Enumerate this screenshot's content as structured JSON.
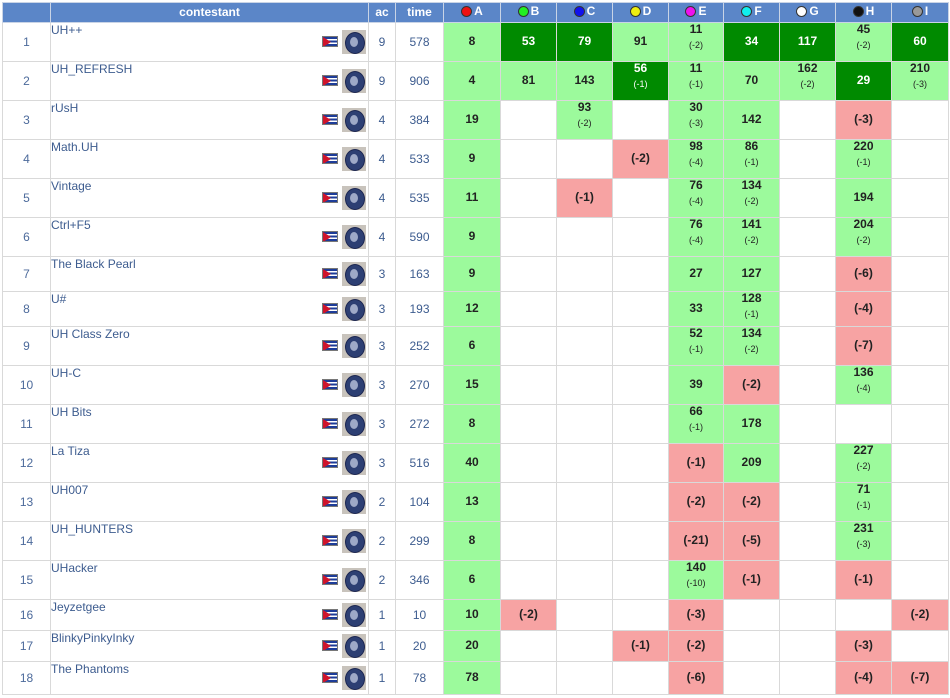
{
  "header": {
    "rank": "",
    "contestant": "contestant",
    "ac": "ac",
    "time": "time"
  },
  "problems": [
    {
      "label": "A",
      "color": "#ee1111"
    },
    {
      "label": "B",
      "color": "#22ee22"
    },
    {
      "label": "C",
      "color": "#1111ee"
    },
    {
      "label": "D",
      "color": "#eeee11"
    },
    {
      "label": "E",
      "color": "#ee11ee"
    },
    {
      "label": "F",
      "color": "#11eeee"
    },
    {
      "label": "G",
      "color": "#ffffff"
    },
    {
      "label": "H",
      "color": "#111111"
    },
    {
      "label": "I",
      "color": "#999999"
    }
  ],
  "rows": [
    {
      "rank": "1",
      "name": "UH++",
      "ac": "9",
      "time": "578",
      "cells": [
        {
          "s": "solved",
          "t": "8"
        },
        {
          "s": "first",
          "t": "53"
        },
        {
          "s": "first",
          "t": "79"
        },
        {
          "s": "solved",
          "t": "91"
        },
        {
          "s": "solved",
          "t": "11",
          "a": "(-2)"
        },
        {
          "s": "first",
          "t": "34"
        },
        {
          "s": "first",
          "t": "117"
        },
        {
          "s": "solved",
          "t": "45",
          "a": "(-2)"
        },
        {
          "s": "first",
          "t": "60"
        }
      ]
    },
    {
      "rank": "2",
      "name": "UH_REFRESH",
      "ac": "9",
      "time": "906",
      "cells": [
        {
          "s": "solved",
          "t": "4"
        },
        {
          "s": "solved",
          "t": "81"
        },
        {
          "s": "solved",
          "t": "143"
        },
        {
          "s": "first",
          "t": "56",
          "a": "(-1)"
        },
        {
          "s": "solved",
          "t": "11",
          "a": "(-1)"
        },
        {
          "s": "solved",
          "t": "70"
        },
        {
          "s": "solved",
          "t": "162",
          "a": "(-2)"
        },
        {
          "s": "first",
          "t": "29"
        },
        {
          "s": "solved",
          "t": "210",
          "a": "(-3)"
        }
      ]
    },
    {
      "rank": "3",
      "name": "rUsH",
      "ac": "4",
      "time": "384",
      "cells": [
        {
          "s": "solved",
          "t": "19"
        },
        {
          "s": "empty"
        },
        {
          "s": "solved",
          "t": "93",
          "a": "(-2)"
        },
        {
          "s": "empty"
        },
        {
          "s": "solved",
          "t": "30",
          "a": "(-3)"
        },
        {
          "s": "solved",
          "t": "142"
        },
        {
          "s": "empty"
        },
        {
          "s": "failed",
          "t": "(-3)"
        },
        {
          "s": "empty"
        }
      ]
    },
    {
      "rank": "4",
      "name": "Math.UH",
      "ac": "4",
      "time": "533",
      "cells": [
        {
          "s": "solved",
          "t": "9"
        },
        {
          "s": "empty"
        },
        {
          "s": "empty"
        },
        {
          "s": "failed",
          "t": "(-2)"
        },
        {
          "s": "solved",
          "t": "98",
          "a": "(-4)"
        },
        {
          "s": "solved",
          "t": "86",
          "a": "(-1)"
        },
        {
          "s": "empty"
        },
        {
          "s": "solved",
          "t": "220",
          "a": "(-1)"
        },
        {
          "s": "empty"
        }
      ]
    },
    {
      "rank": "5",
      "name": "Vintage",
      "ac": "4",
      "time": "535",
      "cells": [
        {
          "s": "solved",
          "t": "11"
        },
        {
          "s": "empty"
        },
        {
          "s": "failed",
          "t": "(-1)"
        },
        {
          "s": "empty"
        },
        {
          "s": "solved",
          "t": "76",
          "a": "(-4)"
        },
        {
          "s": "solved",
          "t": "134",
          "a": "(-2)"
        },
        {
          "s": "empty"
        },
        {
          "s": "solved",
          "t": "194"
        },
        {
          "s": "empty"
        }
      ]
    },
    {
      "rank": "6",
      "name": "Ctrl+F5",
      "ac": "4",
      "time": "590",
      "cells": [
        {
          "s": "solved",
          "t": "9"
        },
        {
          "s": "empty"
        },
        {
          "s": "empty"
        },
        {
          "s": "empty"
        },
        {
          "s": "solved",
          "t": "76",
          "a": "(-4)"
        },
        {
          "s": "solved",
          "t": "141",
          "a": "(-2)"
        },
        {
          "s": "empty"
        },
        {
          "s": "solved",
          "t": "204",
          "a": "(-2)"
        },
        {
          "s": "empty"
        }
      ]
    },
    {
      "rank": "7",
      "name": "The Black Pearl",
      "ac": "3",
      "time": "163",
      "cells": [
        {
          "s": "solved",
          "t": "9"
        },
        {
          "s": "empty"
        },
        {
          "s": "empty"
        },
        {
          "s": "empty"
        },
        {
          "s": "solved",
          "t": "27"
        },
        {
          "s": "solved",
          "t": "127"
        },
        {
          "s": "empty"
        },
        {
          "s": "failed",
          "t": "(-6)"
        },
        {
          "s": "empty"
        }
      ]
    },
    {
      "rank": "8",
      "name": "U#",
      "ac": "3",
      "time": "193",
      "cells": [
        {
          "s": "solved",
          "t": "12"
        },
        {
          "s": "empty"
        },
        {
          "s": "empty"
        },
        {
          "s": "empty"
        },
        {
          "s": "solved",
          "t": "33"
        },
        {
          "s": "solved",
          "t": "128",
          "a": "(-1)"
        },
        {
          "s": "empty"
        },
        {
          "s": "failed",
          "t": "(-4)"
        },
        {
          "s": "empty"
        }
      ]
    },
    {
      "rank": "9",
      "name": "UH Class Zero",
      "ac": "3",
      "time": "252",
      "cells": [
        {
          "s": "solved",
          "t": "6"
        },
        {
          "s": "empty"
        },
        {
          "s": "empty"
        },
        {
          "s": "empty"
        },
        {
          "s": "solved",
          "t": "52",
          "a": "(-1)"
        },
        {
          "s": "solved",
          "t": "134",
          "a": "(-2)"
        },
        {
          "s": "empty"
        },
        {
          "s": "failed",
          "t": "(-7)"
        },
        {
          "s": "empty"
        }
      ]
    },
    {
      "rank": "10",
      "name": "UH-C",
      "ac": "3",
      "time": "270",
      "cells": [
        {
          "s": "solved",
          "t": "15"
        },
        {
          "s": "empty"
        },
        {
          "s": "empty"
        },
        {
          "s": "empty"
        },
        {
          "s": "solved",
          "t": "39"
        },
        {
          "s": "failed",
          "t": "(-2)"
        },
        {
          "s": "empty"
        },
        {
          "s": "solved",
          "t": "136",
          "a": "(-4)"
        },
        {
          "s": "empty"
        }
      ]
    },
    {
      "rank": "11",
      "name": "UH Bits",
      "ac": "3",
      "time": "272",
      "cells": [
        {
          "s": "solved",
          "t": "8"
        },
        {
          "s": "empty"
        },
        {
          "s": "empty"
        },
        {
          "s": "empty"
        },
        {
          "s": "solved",
          "t": "66",
          "a": "(-1)"
        },
        {
          "s": "solved",
          "t": "178"
        },
        {
          "s": "empty"
        },
        {
          "s": "empty"
        },
        {
          "s": "empty"
        }
      ]
    },
    {
      "rank": "12",
      "name": "La Tiza",
      "ac": "3",
      "time": "516",
      "cells": [
        {
          "s": "solved",
          "t": "40"
        },
        {
          "s": "empty"
        },
        {
          "s": "empty"
        },
        {
          "s": "empty"
        },
        {
          "s": "failed",
          "t": "(-1)"
        },
        {
          "s": "solved",
          "t": "209"
        },
        {
          "s": "empty"
        },
        {
          "s": "solved",
          "t": "227",
          "a": "(-2)"
        },
        {
          "s": "empty"
        }
      ]
    },
    {
      "rank": "13",
      "name": "UH007",
      "ac": "2",
      "time": "104",
      "cells": [
        {
          "s": "solved",
          "t": "13"
        },
        {
          "s": "empty"
        },
        {
          "s": "empty"
        },
        {
          "s": "empty"
        },
        {
          "s": "failed",
          "t": "(-2)"
        },
        {
          "s": "failed",
          "t": "(-2)"
        },
        {
          "s": "empty"
        },
        {
          "s": "solved",
          "t": "71",
          "a": "(-1)"
        },
        {
          "s": "empty"
        }
      ]
    },
    {
      "rank": "14",
      "name": "UH_HUNTERS",
      "ac": "2",
      "time": "299",
      "cells": [
        {
          "s": "solved",
          "t": "8"
        },
        {
          "s": "empty"
        },
        {
          "s": "empty"
        },
        {
          "s": "empty"
        },
        {
          "s": "failed",
          "t": "(-21)"
        },
        {
          "s": "failed",
          "t": "(-5)"
        },
        {
          "s": "empty"
        },
        {
          "s": "solved",
          "t": "231",
          "a": "(-3)"
        },
        {
          "s": "empty"
        }
      ]
    },
    {
      "rank": "15",
      "name": "UHacker",
      "ac": "2",
      "time": "346",
      "cells": [
        {
          "s": "solved",
          "t": "6"
        },
        {
          "s": "empty"
        },
        {
          "s": "empty"
        },
        {
          "s": "empty"
        },
        {
          "s": "solved",
          "t": "140",
          "a": "(-10)"
        },
        {
          "s": "failed",
          "t": "(-1)"
        },
        {
          "s": "empty"
        },
        {
          "s": "failed",
          "t": "(-1)"
        },
        {
          "s": "empty"
        }
      ]
    },
    {
      "rank": "16",
      "name": "Jeyzetgee",
      "ac": "1",
      "time": "10",
      "cells": [
        {
          "s": "solved",
          "t": "10"
        },
        {
          "s": "failed",
          "t": "(-2)"
        },
        {
          "s": "empty"
        },
        {
          "s": "empty"
        },
        {
          "s": "failed",
          "t": "(-3)"
        },
        {
          "s": "empty"
        },
        {
          "s": "empty"
        },
        {
          "s": "empty"
        },
        {
          "s": "failed",
          "t": "(-2)"
        }
      ]
    },
    {
      "rank": "17",
      "name": "BlinkyPinkyInky",
      "ac": "1",
      "time": "20",
      "cells": [
        {
          "s": "solved",
          "t": "20"
        },
        {
          "s": "empty"
        },
        {
          "s": "empty"
        },
        {
          "s": "failed",
          "t": "(-1)"
        },
        {
          "s": "failed",
          "t": "(-2)"
        },
        {
          "s": "empty"
        },
        {
          "s": "empty"
        },
        {
          "s": "failed",
          "t": "(-3)"
        },
        {
          "s": "empty"
        }
      ]
    },
    {
      "rank": "18",
      "name": "The Phantoms",
      "ac": "1",
      "time": "78",
      "cells": [
        {
          "s": "solved",
          "t": "78"
        },
        {
          "s": "empty"
        },
        {
          "s": "empty"
        },
        {
          "s": "empty"
        },
        {
          "s": "failed",
          "t": "(-6)"
        },
        {
          "s": "empty"
        },
        {
          "s": "empty"
        },
        {
          "s": "failed",
          "t": "(-4)"
        },
        {
          "s": "failed",
          "t": "(-7)"
        }
      ]
    }
  ]
}
